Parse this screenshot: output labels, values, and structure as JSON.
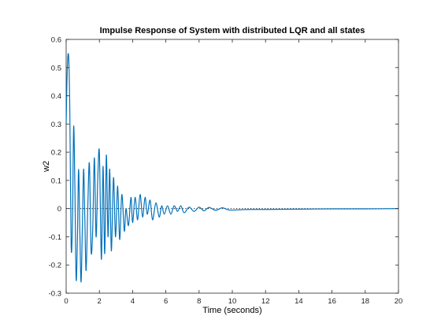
{
  "chart_data": {
    "type": "line",
    "title": "Impulse Response of System with distributed LQR and all states",
    "xlabel": "Time (seconds)",
    "ylabel": "w2",
    "xlim": [
      0,
      20
    ],
    "ylim": [
      -0.3,
      0.6
    ],
    "xticks": [
      0,
      2,
      4,
      6,
      8,
      10,
      12,
      14,
      16,
      18,
      20
    ],
    "yticks": [
      -0.3,
      -0.2,
      -0.1,
      0,
      0.1,
      0.2,
      0.3,
      0.4,
      0.5,
      0.6
    ],
    "grid": false,
    "zero_reference_line": "dotted",
    "series_color": "#0072BD",
    "series": [
      {
        "x": [
          0,
          0.07,
          0.15,
          0.22,
          0.3,
          0.38,
          0.45,
          0.52,
          0.6,
          0.68,
          0.75,
          0.83,
          0.9,
          0.98,
          1.05,
          1.12,
          1.2,
          1.3,
          1.4,
          1.5,
          1.6,
          1.7,
          1.8,
          1.9,
          2.0,
          2.12,
          2.22,
          2.32,
          2.42,
          2.52,
          2.62,
          2.72,
          2.85,
          2.97,
          3.1,
          3.22,
          3.35,
          3.5,
          3.6,
          3.75,
          3.9,
          4.0,
          4.15,
          4.3,
          4.45,
          4.6,
          4.75,
          4.88,
          5.05,
          5.2,
          5.4,
          5.6,
          5.75,
          5.9,
          6.1,
          6.3,
          6.5,
          6.7,
          6.9,
          7.1,
          7.4,
          7.7,
          8.0,
          8.3,
          8.6,
          9.0,
          9.4,
          9.8,
          10.5,
          11.0,
          12.0,
          14.0,
          16.0,
          18.0,
          20.0
        ],
        "y": [
          0.3,
          0.5,
          0.54,
          0.35,
          -0.13,
          -0.05,
          0.29,
          0.1,
          -0.25,
          -0.1,
          0.14,
          -0.1,
          -0.26,
          -0.05,
          0.14,
          -0.02,
          -0.22,
          0.0,
          0.16,
          -0.15,
          -0.07,
          0.18,
          -0.1,
          0.1,
          0.2,
          -0.18,
          0.15,
          -0.16,
          0.19,
          -0.1,
          0.14,
          -0.15,
          0.11,
          -0.1,
          0.08,
          -0.11,
          0.05,
          -0.08,
          0.0,
          -0.06,
          0.04,
          -0.05,
          0.04,
          -0.04,
          0.05,
          -0.03,
          0.04,
          -0.02,
          0.03,
          -0.04,
          0.02,
          -0.03,
          0.01,
          -0.02,
          0.01,
          -0.02,
          0.01,
          -0.01,
          0.01,
          -0.015,
          0.005,
          -0.01,
          0.005,
          -0.008,
          0.004,
          -0.006,
          0.003,
          -0.005,
          -0.004,
          -0.003,
          -0.003,
          -0.002,
          -0.001,
          -0.001,
          0.0
        ]
      }
    ]
  }
}
